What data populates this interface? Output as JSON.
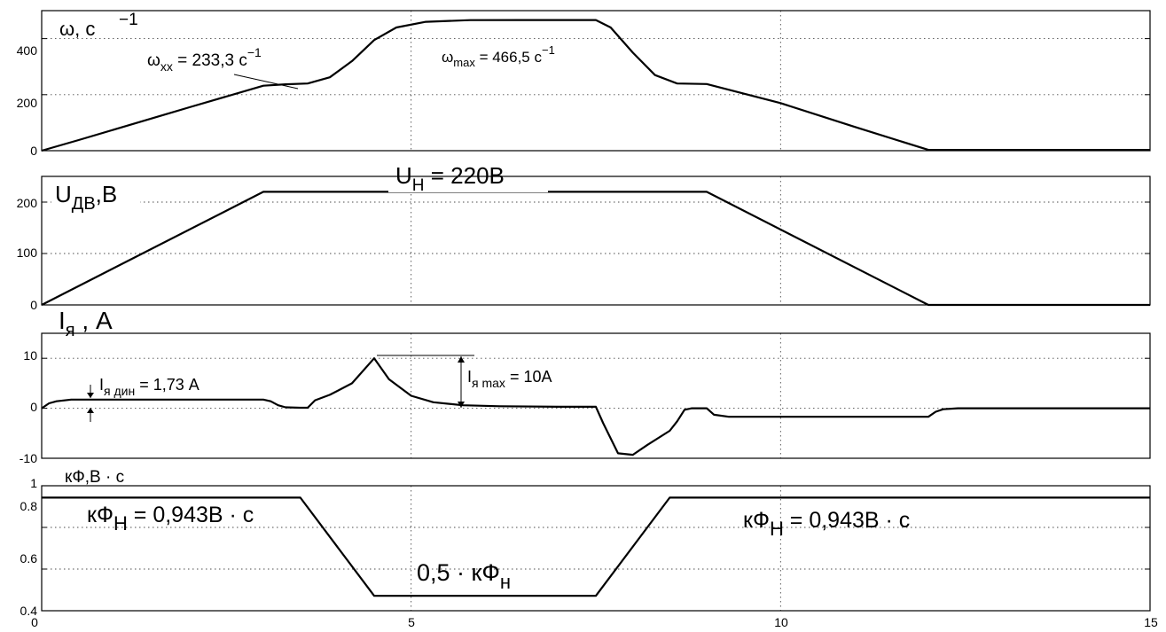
{
  "chart_data": [
    {
      "type": "line",
      "panel": "omega",
      "ylabel": "ω, c",
      "ylabel_sup": "−1",
      "xlim": [
        0,
        15
      ],
      "ylim": [
        0,
        500
      ],
      "yticks": [
        0,
        200,
        400
      ],
      "ytick_labels": [
        "0",
        "200",
        "400"
      ],
      "grid": true,
      "series": [
        {
          "x": [
            0,
            0.5,
            1,
            2,
            3,
            3.3,
            3.6,
            3.9,
            4.2,
            4.5,
            4.8,
            5.2,
            5.8,
            6.5,
            7,
            7.5,
            7.7,
            8,
            8.3,
            8.6,
            9,
            10,
            11,
            12,
            13,
            14,
            15
          ],
          "y": [
            0,
            38,
            77,
            155,
            232,
            237,
            240,
            262,
            320,
            395,
            440,
            460,
            466,
            466.5,
            466.5,
            466.5,
            440,
            350,
            270,
            240,
            238,
            170,
            85,
            3,
            3,
            3,
            3
          ]
        }
      ],
      "annotations": [
        {
          "base": "ω",
          "sub": "xx",
          "value": " = 233,3 c",
          "sup": "−1"
        },
        {
          "base": "ω",
          "sub": "max",
          "value": " = 466,5 c",
          "sup": "−1"
        }
      ]
    },
    {
      "type": "line",
      "panel": "voltage",
      "ylabel_base": "U",
      "ylabel_sub": "ДВ",
      "ylabel_rest": ",B",
      "xlim": [
        0,
        15
      ],
      "ylim": [
        0,
        250
      ],
      "yticks": [
        0,
        100,
        200
      ],
      "ytick_labels": [
        "0",
        "100",
        "200"
      ],
      "grid": true,
      "series": [
        {
          "x": [
            0,
            3,
            9,
            12,
            15
          ],
          "y": [
            0,
            220,
            220,
            0,
            0
          ]
        }
      ],
      "annotations": [
        {
          "base": "U",
          "sub": "H",
          "value": " = 220B"
        }
      ]
    },
    {
      "type": "line",
      "panel": "current",
      "ylabel_base": "I",
      "ylabel_sub": "я",
      "ylabel_rest": " , A",
      "xlim": [
        0,
        15
      ],
      "ylim": [
        -10,
        15
      ],
      "yticks": [
        -10,
        0,
        10
      ],
      "ytick_labels": [
        "-10",
        "0",
        "10"
      ],
      "grid": true,
      "series": [
        {
          "x": [
            0,
            0.1,
            0.2,
            0.4,
            1,
            3,
            3.1,
            3.2,
            3.3,
            3.5,
            3.6,
            3.7,
            3.9,
            4.2,
            4.5,
            4.7,
            5,
            5.3,
            5.7,
            6.2,
            7,
            7.5,
            7.6,
            7.8,
            8,
            8.2,
            8.5,
            8.6,
            8.7,
            8.8,
            9,
            9.1,
            9.3,
            10,
            11,
            12,
            12.1,
            12.2,
            12.4,
            13,
            15
          ],
          "y": [
            0,
            1,
            1.4,
            1.73,
            1.73,
            1.73,
            1.4,
            0.6,
            0.2,
            0.1,
            0.1,
            1.6,
            2.7,
            5,
            10,
            5.8,
            2.5,
            1.2,
            0.6,
            0.4,
            0.3,
            0.3,
            -3,
            -9,
            -9.3,
            -7.3,
            -4.5,
            -2.6,
            -0.3,
            0,
            0,
            -1.3,
            -1.7,
            -1.7,
            -1.7,
            -1.7,
            -0.7,
            -0.2,
            0,
            0,
            0
          ]
        }
      ],
      "annotations": [
        {
          "base": "I",
          "sub": "я дин",
          "value": " = 1,73 A"
        },
        {
          "base": "I",
          "sub": "я max",
          "value": " = 10A"
        }
      ]
    },
    {
      "type": "line",
      "panel": "flux",
      "ylabel": "кФ,В · с",
      "xlim": [
        0,
        15
      ],
      "ylim": [
        0.4,
        1
      ],
      "yticks": [
        0.4,
        0.6,
        0.8,
        1
      ],
      "ytick_labels": [
        "0.4",
        "0.6",
        "0.8",
        "1"
      ],
      "xticks": [
        0,
        5,
        10,
        15
      ],
      "xtick_labels": [
        "0",
        "5",
        "10",
        "15"
      ],
      "grid": true,
      "series": [
        {
          "x": [
            0,
            3.5,
            4.5,
            7.5,
            8.5,
            15
          ],
          "y": [
            0.943,
            0.943,
            0.4715,
            0.4715,
            0.943,
            0.943
          ]
        }
      ],
      "annotations": [
        {
          "base": "кФ",
          "sub": "H",
          "value": " = 0,943В · с"
        },
        {
          "base": "кФ",
          "sub": "H",
          "value": " = 0,943В · с"
        },
        {
          "base": "0,5 · кФ",
          "sub": "н",
          "value": ""
        }
      ]
    }
  ]
}
